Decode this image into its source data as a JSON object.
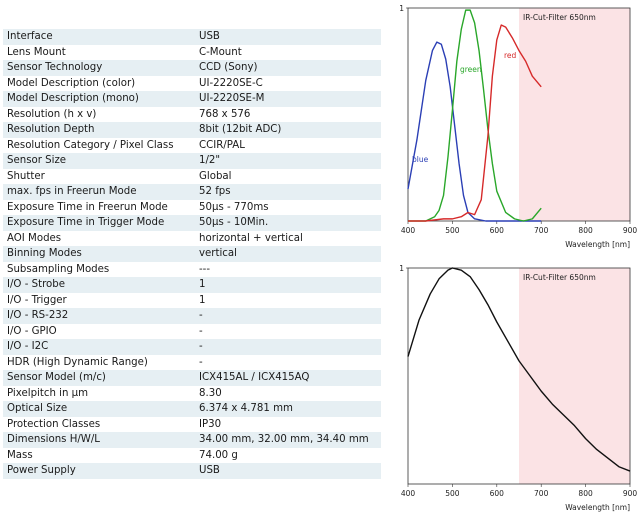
{
  "specs": [
    [
      "Interface",
      "USB"
    ],
    [
      "Lens Mount",
      "C-Mount"
    ],
    [
      "Sensor Technology",
      "CCD (Sony)"
    ],
    [
      "Model Description (color)",
      "UI-2220SE-C"
    ],
    [
      "Model Description (mono)",
      "UI-2220SE-M"
    ],
    [
      "Resolution (h x v)",
      "768 x 576"
    ],
    [
      "Resolution Depth",
      "8bit (12bit ADC)"
    ],
    [
      "Resolution Category / Pixel Class",
      "CCIR/PAL"
    ],
    [
      "Sensor Size",
      "1/2\""
    ],
    [
      "Shutter",
      "Global"
    ],
    [
      "max. fps in Freerun Mode",
      "52 fps"
    ],
    [
      "Exposure Time in Freerun Mode",
      "50µs - 770ms"
    ],
    [
      "Exposure Time in Trigger Mode",
      "50µs - 10Min."
    ],
    [
      "AOI Modes",
      "horizontal + vertical"
    ],
    [
      "Binning Modes",
      "vertical"
    ],
    [
      "Subsampling Modes",
      "---"
    ],
    [
      "I/O - Strobe",
      "1"
    ],
    [
      "I/O - Trigger",
      "1"
    ],
    [
      "I/O - RS-232",
      "-"
    ],
    [
      "I/O - GPIO",
      "-"
    ],
    [
      "I/O - I2C",
      "-"
    ],
    [
      "HDR (High Dynamic Range)",
      "-"
    ],
    [
      "Sensor Model (m/c)",
      "ICX415AL / ICX415AQ"
    ],
    [
      "Pixelpitch in µm",
      "8.30"
    ],
    [
      "Optical Size",
      "6.374 x 4.781 mm"
    ],
    [
      "Protection Classes",
      "IP30"
    ],
    [
      "Dimensions H/W/L",
      "34.00 mm, 32.00 mm, 34.40 mm"
    ],
    [
      "Mass",
      "74.00 g"
    ],
    [
      "Power Supply",
      "USB"
    ]
  ],
  "chart_data": [
    {
      "type": "line",
      "xlabel": "Wavelength [nm]",
      "ylabel": "",
      "xlim": [
        400,
        900
      ],
      "ylim": [
        0,
        1
      ],
      "x_ticks": [
        "400",
        "500",
        "600",
        "700",
        "800",
        "900"
      ],
      "y_ticks": [
        "1"
      ],
      "annotation": "IR-Cut-Filter 650nm",
      "ir_cut_nm": 650,
      "shading_color": "#fbe3e5",
      "series": [
        {
          "name": "blue",
          "color": "#2b3fb5",
          "x": [
            400,
            420,
            440,
            455,
            465,
            475,
            485,
            495,
            505,
            515,
            525,
            535,
            550,
            575,
            600,
            650,
            700
          ],
          "y": [
            0.15,
            0.38,
            0.66,
            0.8,
            0.84,
            0.83,
            0.76,
            0.63,
            0.45,
            0.27,
            0.12,
            0.04,
            0.01,
            0.0,
            0.0,
            0.0,
            0.0
          ]
        },
        {
          "name": "green",
          "color": "#2aa72a",
          "x": [
            400,
            440,
            460,
            470,
            480,
            490,
            500,
            510,
            520,
            530,
            540,
            550,
            560,
            570,
            580,
            590,
            600,
            620,
            640,
            660,
            680,
            700
          ],
          "y": [
            0.0,
            0.0,
            0.02,
            0.05,
            0.12,
            0.3,
            0.52,
            0.75,
            0.9,
            0.99,
            0.99,
            0.93,
            0.8,
            0.62,
            0.43,
            0.27,
            0.14,
            0.04,
            0.01,
            0.0,
            0.01,
            0.06
          ]
        },
        {
          "name": "red",
          "color": "#d62a2a",
          "x": [
            400,
            440,
            480,
            500,
            520,
            535,
            550,
            565,
            580,
            590,
            600,
            610,
            620,
            635,
            650,
            665,
            680,
            700
          ],
          "y": [
            0.0,
            0.0,
            0.01,
            0.01,
            0.02,
            0.04,
            0.03,
            0.1,
            0.4,
            0.68,
            0.85,
            0.92,
            0.91,
            0.86,
            0.8,
            0.75,
            0.68,
            0.63
          ]
        }
      ]
    },
    {
      "type": "line",
      "xlabel": "Wavelength [nm]",
      "ylabel": "",
      "xlim": [
        400,
        900
      ],
      "ylim": [
        0,
        1
      ],
      "x_ticks": [
        "400",
        "500",
        "600",
        "700",
        "800",
        "900"
      ],
      "y_ticks": [
        "1"
      ],
      "annotation": "IR-Cut-Filter 650nm",
      "ir_cut_nm": 650,
      "shading_color": "#fbe3e5",
      "series": [
        {
          "name": "",
          "color": "#111111",
          "x": [
            400,
            425,
            450,
            470,
            490,
            500,
            520,
            540,
            560,
            580,
            600,
            625,
            650,
            675,
            700,
            725,
            750,
            775,
            800,
            825,
            850,
            875,
            900
          ],
          "y": [
            0.59,
            0.76,
            0.88,
            0.95,
            0.99,
            1.0,
            0.99,
            0.96,
            0.9,
            0.83,
            0.75,
            0.66,
            0.57,
            0.5,
            0.43,
            0.37,
            0.32,
            0.27,
            0.21,
            0.16,
            0.12,
            0.08,
            0.06
          ]
        }
      ]
    }
  ]
}
